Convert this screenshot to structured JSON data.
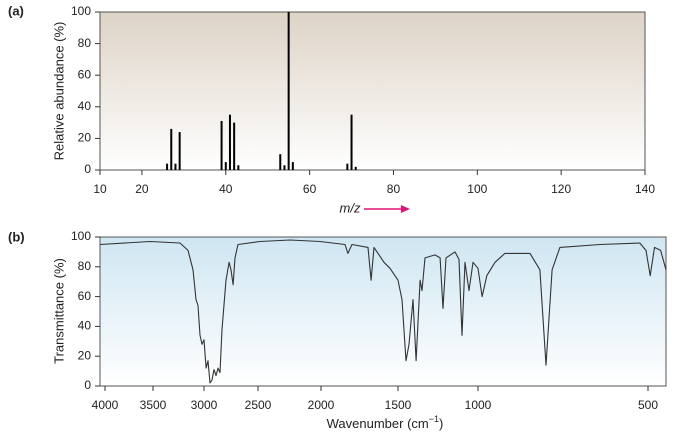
{
  "chart_data": [
    {
      "type": "bar",
      "label": "(a)",
      "ylabel": "Relative abundance (%)",
      "xlabel": "m/z",
      "x": [
        26,
        27,
        28,
        29,
        39,
        40,
        41,
        42,
        43,
        53,
        54,
        55,
        56,
        69,
        70,
        71
      ],
      "values": [
        4,
        26,
        4,
        24,
        31,
        5,
        35,
        30,
        3,
        10,
        3,
        100,
        5,
        4,
        35,
        2
      ],
      "color": "#000000",
      "xlim": [
        10,
        140
      ],
      "xticks": [
        10,
        20,
        40,
        60,
        80,
        100,
        120,
        140
      ],
      "ylim": [
        0,
        100
      ],
      "yticks": [
        0,
        20,
        40,
        60,
        80,
        100
      ]
    },
    {
      "type": "line",
      "label": "(b)",
      "ylabel": "Transmittance (%)",
      "xlabel": {
        "text": "Wavenumber (cm",
        "sup": "−1",
        "end": ")"
      },
      "x": [
        4050,
        3530,
        3235,
        3157,
        3108,
        3078,
        3059,
        3039,
        3020,
        3000,
        2981,
        2963,
        2944,
        2926,
        2907,
        2889,
        2870,
        2852,
        2833,
        2796,
        2768,
        2750,
        2731,
        2713,
        2685,
        2484,
        2246,
        2008,
        1844,
        1825,
        1799,
        1695,
        1675,
        1656,
        1591,
        1552,
        1500,
        1475,
        1450,
        1431,
        1406,
        1387,
        1362,
        1350,
        1331,
        1269,
        1237,
        1219,
        1200,
        1144,
        1119,
        1100,
        1081,
        1056,
        1031,
        1000,
        988,
        974,
        950,
        921,
        847,
        818,
        800,
        782,
        759,
        641,
        524,
        506,
        494,
        482,
        465,
        450
      ],
      "values": [
        95,
        97,
        96,
        91,
        78,
        58,
        54,
        34,
        28,
        31,
        12,
        17,
        2,
        4,
        11,
        7,
        12,
        9,
        38,
        71,
        83,
        78,
        68,
        86,
        95,
        97,
        98,
        97,
        95,
        89,
        95,
        93,
        71,
        93,
        83,
        79,
        71,
        58,
        17,
        28,
        58,
        17,
        71,
        64,
        86,
        88,
        86,
        52,
        86,
        90,
        85,
        34,
        83,
        64,
        83,
        79,
        60,
        74,
        83,
        89,
        89,
        78,
        14,
        78,
        93,
        95,
        96,
        91,
        74,
        93,
        91,
        78
      ],
      "color": "#333333",
      "xlim": [
        4050,
        450
      ],
      "xticks": [
        4000,
        3500,
        3000,
        2500,
        2000,
        1500,
        1000,
        500
      ],
      "ylim": [
        0,
        100
      ],
      "yticks": [
        0,
        20,
        40,
        60,
        80,
        100
      ]
    }
  ]
}
